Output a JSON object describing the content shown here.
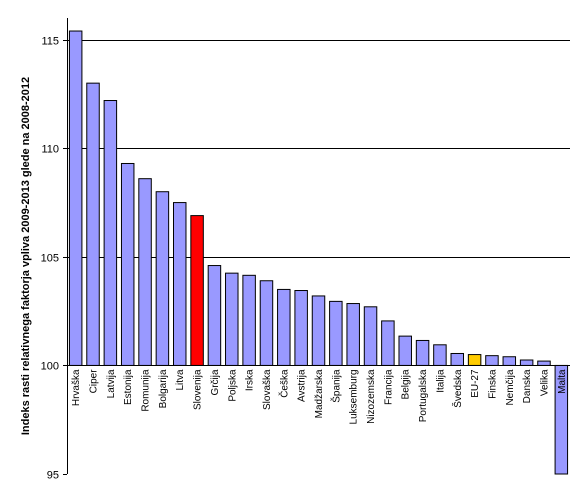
{
  "chart_data": {
    "type": "bar",
    "title": "",
    "xlabel": "",
    "ylabel": "Indeks rasti relativnega faktorja vpliva 2009-2013 glede na 2008-2012",
    "ylim": [
      95,
      116
    ],
    "baseline": 100,
    "yticks": [
      95,
      100,
      105,
      110,
      115
    ],
    "grid": true,
    "categories": [
      "Hrvaška",
      "Ciper",
      "Latvija",
      "Estonija",
      "Romunija",
      "Bolgarija",
      "Litva",
      "Slovenija",
      "Grčija",
      "Poljska",
      "Irska",
      "Slovaška",
      "Češka",
      "Avstrija",
      "Madžarska",
      "Španija",
      "Luksemburg",
      "Nizozemska",
      "Francija",
      "Belgija",
      "Portugalska",
      "Italija",
      "Švedska",
      "EU-27",
      "Finska",
      "Nemčija",
      "Danska",
      "Velika",
      "Malta"
    ],
    "values": [
      115.4,
      113.0,
      112.2,
      109.3,
      108.6,
      108.0,
      107.5,
      106.9,
      104.6,
      104.25,
      104.15,
      103.9,
      103.5,
      103.45,
      103.2,
      102.95,
      102.85,
      102.7,
      102.05,
      101.35,
      101.15,
      100.95,
      100.55,
      100.5,
      100.45,
      100.4,
      100.25,
      100.2,
      95.0
    ],
    "colors": {
      "default": "#9999ff",
      "highlight_slovenia": "#ff0000",
      "highlight_eu": "#ffcc00",
      "grid": "#000000"
    },
    "highlights": {
      "Slovenija": "#ff0000",
      "EU-27": "#ffcc00"
    }
  }
}
